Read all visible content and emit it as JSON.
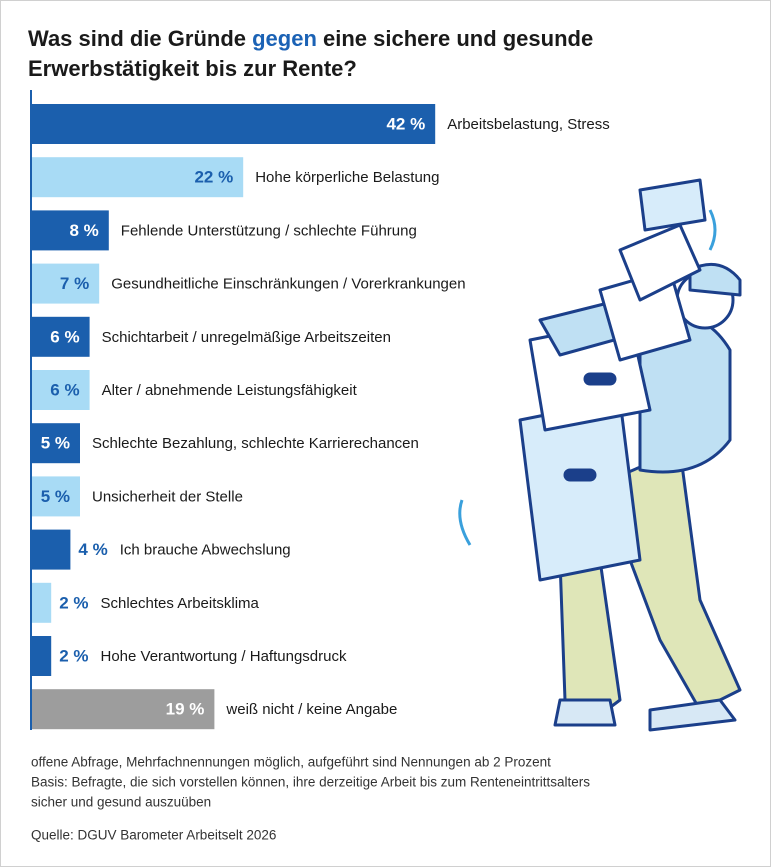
{
  "chart_data": {
    "type": "bar",
    "orientation": "horizontal",
    "title_start": "Was sind die Gründe ",
    "title_highlight": "gegen",
    "title_end": " eine sichere und gesunde",
    "title_line2": "Erwerbstätigkeit bis zur Rente?",
    "categories": [
      "Arbeitsbelastung, Stress",
      "Hohe körperliche Belastung",
      "Fehlende Unterstützung / schlechte Führung",
      "Gesundheitliche Einschränkungen / Vorerkrankungen",
      "Schichtarbeit / unregelmäßige Arbeitszeiten",
      "Alter / abnehmende Leistungsfähigkeit",
      "Schlechte Bezahlung, schlechte Karrierechancen",
      "Unsicherheit der Stelle",
      "Ich brauche Abwechslung",
      "Schlechtes Arbeitsklima",
      "Hohe Verantwortung / Haftungsdruck",
      "weiß nicht / keine Angabe"
    ],
    "values": [
      42,
      22,
      8,
      7,
      6,
      6,
      5,
      5,
      4,
      2,
      2,
      19
    ],
    "value_labels": [
      "42 %",
      "22 %",
      "8 %",
      "7 %",
      "6 %",
      "6 %",
      "5 %",
      "5 %",
      "4 %",
      "2 %",
      "2 %",
      "19 %"
    ],
    "colors": [
      "#1b5fad",
      "#a8dbf5",
      "#1b5fad",
      "#a8dbf5",
      "#1b5fad",
      "#a8dbf5",
      "#1b5fad",
      "#a8dbf5",
      "#1b5fad",
      "#a8dbf5",
      "#1b5fad",
      "#9d9d9d"
    ],
    "notes": [
      "offene Abfrage, Mehrfachnennungen möglich, aufgeführt sind Nennungen ab 2 Prozent",
      "Basis: Befragte, die sich vorstellen können, ihre derzeitige Arbeit bis zum Renteneintrittsalters",
      "sicher und gesund auszuüben"
    ],
    "source": "Quelle: DGUV Barometer Arbeitselt 2026"
  }
}
